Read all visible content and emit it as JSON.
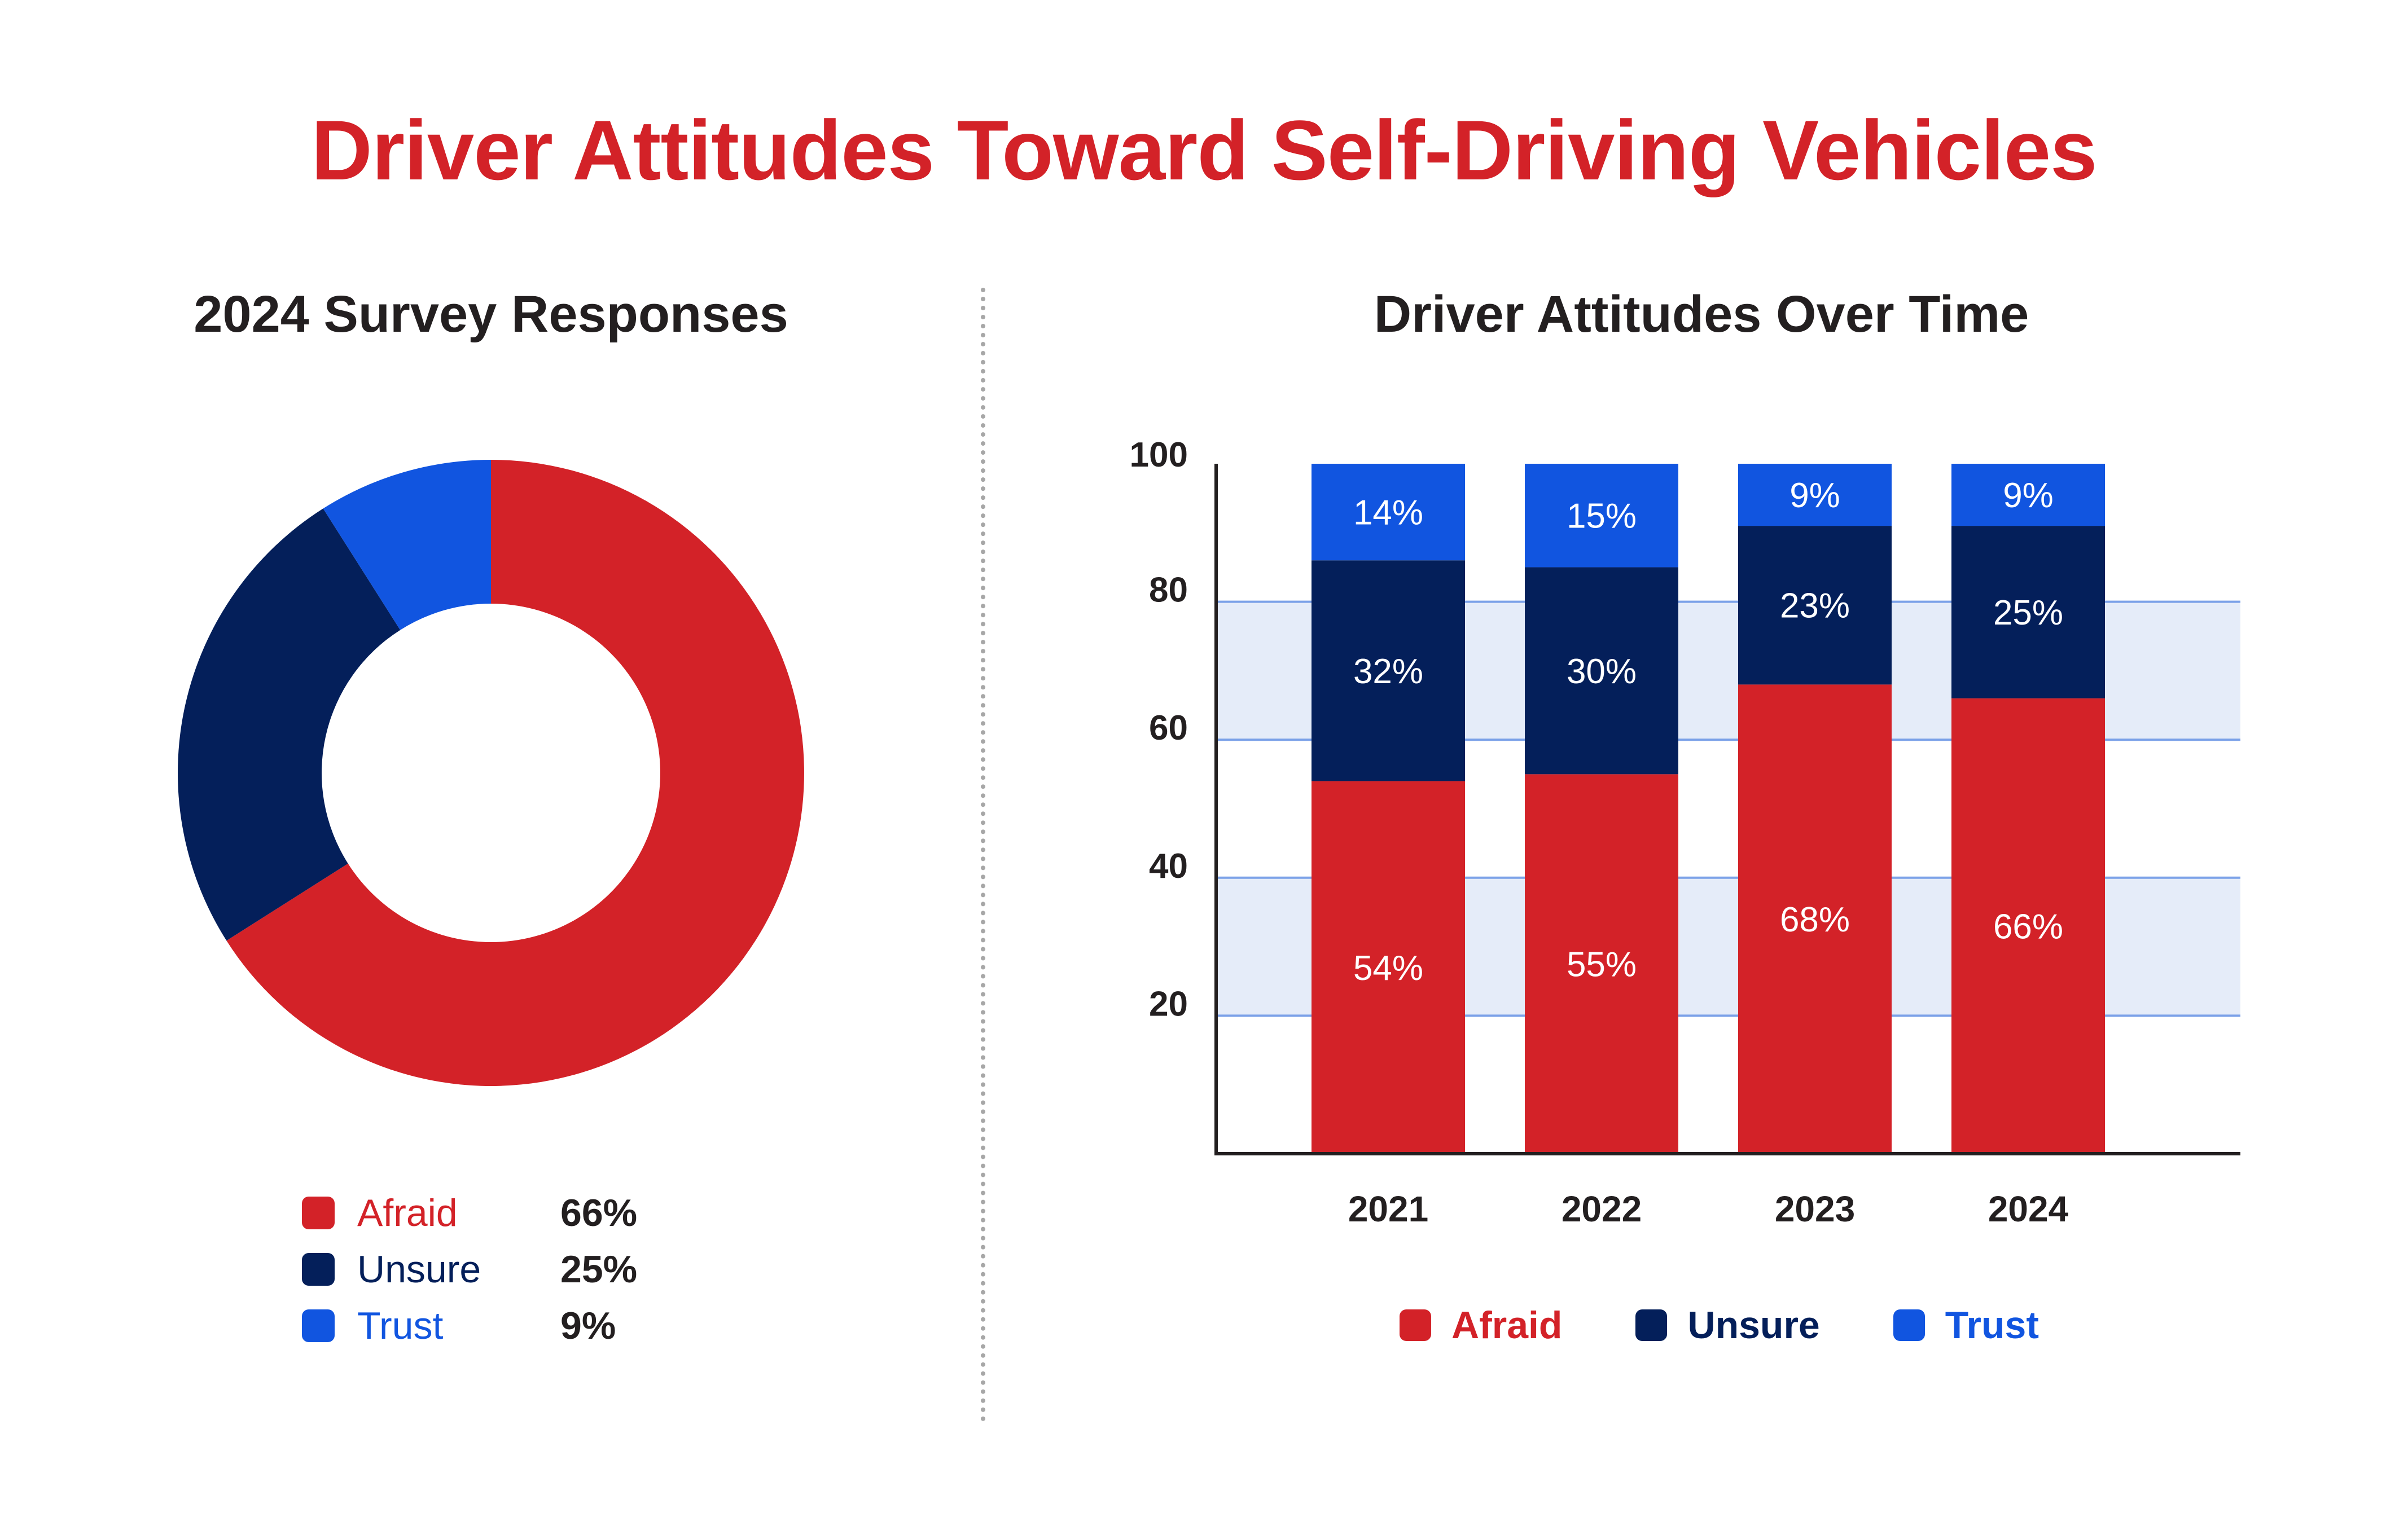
{
  "title": "Driver Attitudes Toward Self-Driving Vehicles",
  "colors": {
    "afraid": "#d32228",
    "unsure": "#041f5a",
    "trust": "#1155e0",
    "title": "#d32228",
    "text": "#231f20",
    "band": "#e5ecf9",
    "gridline": "#7ba1e8"
  },
  "left_panel": {
    "title": "2024 Survey Responses",
    "legend": [
      {
        "label": "Afraid",
        "value": "66%"
      },
      {
        "label": "Unsure",
        "value": "25%"
      },
      {
        "label": "Trust",
        "value": "9%"
      }
    ]
  },
  "right_panel": {
    "title": "Driver Attitudes Over Time",
    "legend": [
      {
        "label": "Afraid"
      },
      {
        "label": "Unsure"
      },
      {
        "label": "Trust"
      }
    ]
  },
  "chart_data": [
    {
      "type": "pie",
      "variant": "donut",
      "title": "2024 Survey Responses",
      "categories": [
        "Afraid",
        "Unsure",
        "Trust"
      ],
      "values": [
        66,
        25,
        9
      ],
      "unit": "%",
      "start_angle": "12 o'clock, clockwise",
      "legend": "bottom"
    },
    {
      "type": "bar",
      "stacked": true,
      "title": "Driver Attitudes Over Time",
      "categories": [
        "2021",
        "2022",
        "2023",
        "2024"
      ],
      "series": [
        {
          "name": "Afraid",
          "values": [
            54,
            55,
            68,
            66
          ],
          "labels": [
            "54%",
            "55%",
            "68%",
            "66%"
          ]
        },
        {
          "name": "Unsure",
          "values": [
            32,
            30,
            23,
            25
          ],
          "labels": [
            "32%",
            "30%",
            "23%",
            "25%"
          ]
        },
        {
          "name": "Trust",
          "values": [
            14,
            15,
            9,
            9
          ],
          "labels": [
            "14%",
            "15%",
            "9%",
            "9%"
          ]
        }
      ],
      "xlabel": "",
      "ylabel": "",
      "ylim": [
        0,
        100
      ],
      "yticks": [
        20,
        40,
        60,
        80,
        100
      ],
      "grid": true,
      "shaded_bands": [
        [
          20,
          40
        ],
        [
          60,
          80
        ]
      ],
      "legend": "bottom"
    }
  ]
}
